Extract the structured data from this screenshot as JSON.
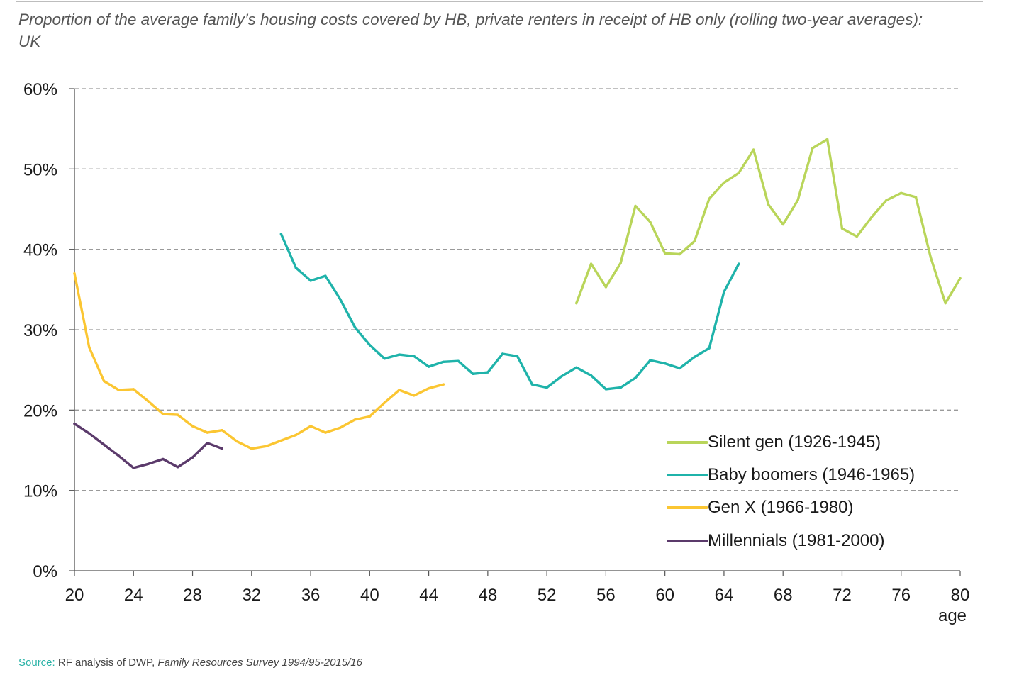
{
  "chart_data": {
    "type": "line",
    "title": "Proportion of the average family’s housing costs covered by HB, private renters in receipt of HB only (rolling two-year averages): UK",
    "xlabel": "age",
    "ylabel": "",
    "xlim": [
      20,
      80
    ],
    "ylim": [
      0,
      0.6
    ],
    "x_ticks": [
      20,
      24,
      28,
      32,
      36,
      40,
      44,
      48,
      52,
      56,
      60,
      64,
      68,
      72,
      76,
      80
    ],
    "x_tick_labels": [
      "20",
      "24",
      "28",
      "32",
      "36",
      "40",
      "44",
      "48",
      "52",
      "56",
      "60",
      "64",
      "68",
      "72",
      "76",
      "80"
    ],
    "y_ticks": [
      0,
      0.1,
      0.2,
      0.3,
      0.4,
      0.5,
      0.6
    ],
    "y_tick_labels": [
      "0%",
      "10%",
      "20%",
      "30%",
      "40%",
      "50%",
      "60%"
    ],
    "grid": "horizontal dashed",
    "legend_position": "bottom-right",
    "series": [
      {
        "name": "Silent gen (1926-1945)",
        "color": "#b9d55a",
        "x": [
          54,
          55,
          56,
          57,
          58,
          59,
          60,
          61,
          62,
          63,
          64,
          65,
          66,
          67,
          68,
          69,
          70,
          71,
          72,
          73,
          74,
          75,
          76,
          77,
          78,
          79,
          80
        ],
        "values": [
          0.333,
          0.382,
          0.353,
          0.383,
          0.454,
          0.434,
          0.395,
          0.394,
          0.41,
          0.463,
          0.483,
          0.495,
          0.524,
          0.456,
          0.431,
          0.461,
          0.526,
          0.537,
          0.426,
          0.416,
          0.44,
          0.461,
          0.47,
          0.465,
          0.39,
          0.333,
          0.364
        ]
      },
      {
        "name": "Baby boomers (1946-1965)",
        "color": "#1fb3aa",
        "x": [
          34,
          35,
          36,
          37,
          38,
          39,
          40,
          41,
          42,
          43,
          44,
          45,
          46,
          47,
          48,
          49,
          50,
          51,
          52,
          53,
          54,
          55,
          56,
          57,
          58,
          59,
          60,
          61,
          62,
          63,
          64,
          65
        ],
        "values": [
          0.419,
          0.377,
          0.361,
          0.367,
          0.338,
          0.303,
          0.281,
          0.264,
          0.269,
          0.267,
          0.254,
          0.26,
          0.261,
          0.245,
          0.247,
          0.27,
          0.267,
          0.232,
          0.228,
          0.242,
          0.253,
          0.243,
          0.226,
          0.228,
          0.24,
          0.262,
          0.258,
          0.252,
          0.266,
          0.277,
          0.347,
          0.382
        ]
      },
      {
        "name": "Gen X (1966-1980)",
        "color": "#fbc632",
        "x": [
          20,
          21,
          22,
          23,
          24,
          25,
          26,
          27,
          28,
          29,
          30,
          31,
          32,
          33,
          34,
          35,
          36,
          37,
          38,
          39,
          40,
          41,
          42,
          43,
          44,
          45
        ],
        "values": [
          0.37,
          0.278,
          0.236,
          0.225,
          0.226,
          0.211,
          0.195,
          0.194,
          0.18,
          0.172,
          0.175,
          0.161,
          0.152,
          0.155,
          0.162,
          0.169,
          0.18,
          0.172,
          0.178,
          0.188,
          0.192,
          0.209,
          0.225,
          0.218,
          0.227,
          0.232
        ]
      },
      {
        "name": "Millennials (1981-2000)",
        "color": "#5b3a6b",
        "x": [
          20,
          21,
          22,
          23,
          24,
          25,
          26,
          27,
          28,
          29,
          30
        ],
        "values": [
          0.183,
          0.171,
          0.157,
          0.143,
          0.128,
          0.133,
          0.139,
          0.129,
          0.141,
          0.159,
          0.152
        ]
      }
    ]
  },
  "footer": {
    "source_label": "Source:",
    "source_text": " RF analysis of DWP, ",
    "source_italic": "Family Resources Survey 1994/95-2015/16"
  }
}
